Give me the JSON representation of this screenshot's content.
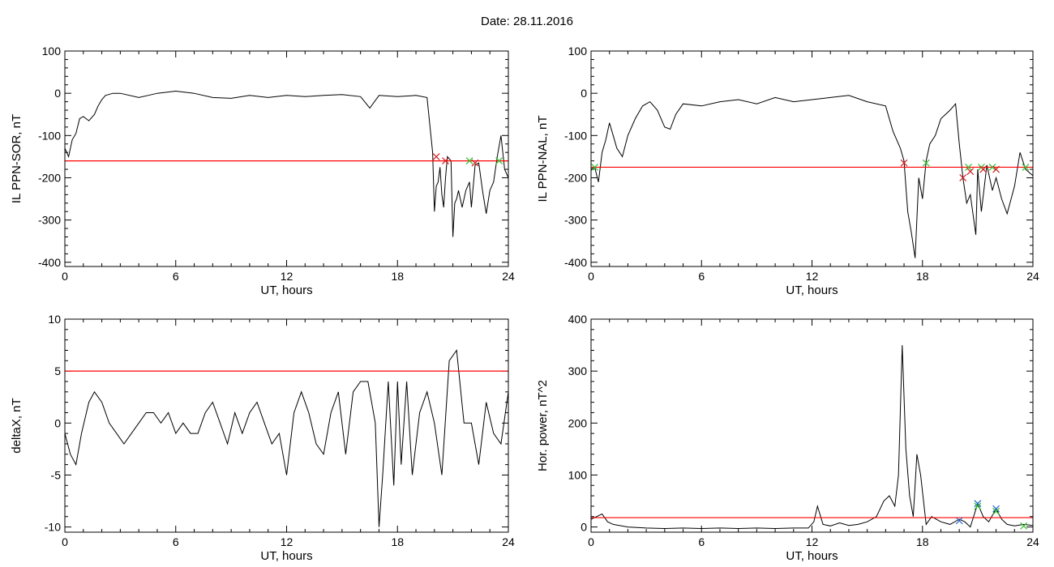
{
  "page": {
    "title": "Date:  28.11.2016"
  },
  "colors": {
    "signal": "#000000",
    "threshold": "#ff0000",
    "substorm": "#1f5fd0",
    "marker_red": "#d02020",
    "marker_green": "#30c030",
    "marker_blue": "#2060d0"
  },
  "chart_data": [
    {
      "type": "line",
      "xlabel": "UT, hours",
      "ylabel": "IL PPN-SOR, nT",
      "xlim": [
        0,
        24
      ],
      "ylim": [
        -410,
        100
      ],
      "xticks": [
        0,
        6,
        12,
        18,
        24
      ],
      "yticks": [
        100,
        0,
        -100,
        -200,
        -300,
        -400
      ],
      "threshold": -160,
      "series": [
        {
          "x": [
            0,
            0.2,
            0.4,
            0.6,
            0.8,
            1.0,
            1.3,
            1.6,
            1.8,
            2.0,
            2.2,
            2.6,
            3.0,
            4.0,
            4.5,
            5.0,
            6.0,
            7.0,
            8.0,
            9.0,
            10.0,
            11.0,
            12.0,
            13.0,
            14.0,
            15.0,
            16.0,
            16.5,
            17.0,
            18.0,
            19.0,
            19.6,
            19.9,
            20.0,
            20.1,
            20.2,
            20.3,
            20.4,
            20.5,
            20.6,
            20.7,
            20.9,
            21.0,
            21.1,
            21.2,
            21.3,
            21.5,
            21.7,
            21.9,
            22.0,
            22.2,
            22.4,
            22.6,
            22.8,
            23.0,
            23.2,
            23.4,
            23.6,
            23.8,
            24.0
          ],
          "y": [
            -130,
            -150,
            -110,
            -95,
            -60,
            -55,
            -65,
            -50,
            -30,
            -15,
            -5,
            0,
            0,
            -10,
            -5,
            0,
            5,
            0,
            -10,
            -12,
            -5,
            -10,
            -5,
            -8,
            -5,
            -3,
            -8,
            -35,
            -5,
            -8,
            -5,
            -10,
            -140,
            -280,
            -220,
            -210,
            -175,
            -240,
            -270,
            -200,
            -150,
            -160,
            -340,
            -260,
            -250,
            -230,
            -270,
            -230,
            -210,
            -270,
            -170,
            -165,
            -230,
            -285,
            -230,
            -210,
            -150,
            -100,
            -180,
            -200
          ]
        }
      ],
      "markers": [
        {
          "x": 20.1,
          "y": -150,
          "color": "red"
        },
        {
          "x": 20.6,
          "y": -160,
          "color": "red"
        },
        {
          "x": 21.9,
          "y": -160,
          "color": "green"
        },
        {
          "x": 22.2,
          "y": -165,
          "color": "red"
        },
        {
          "x": 23.5,
          "y": -160,
          "color": "green"
        }
      ]
    },
    {
      "type": "line",
      "xlabel": "UT, hours",
      "ylabel": "IL PPN-NAL, nT",
      "xlim": [
        0,
        24
      ],
      "ylim": [
        -410,
        100
      ],
      "xticks": [
        0,
        6,
        12,
        18,
        24
      ],
      "yticks": [
        100,
        0,
        -100,
        -200,
        -300,
        -400
      ],
      "threshold": -175,
      "series": [
        {
          "x": [
            0,
            0.2,
            0.4,
            0.6,
            0.8,
            1.0,
            1.2,
            1.4,
            1.7,
            2.0,
            2.4,
            2.8,
            3.2,
            3.6,
            4.0,
            4.3,
            4.6,
            5.0,
            6.0,
            7.0,
            8.0,
            9.0,
            10.0,
            11.0,
            12.0,
            13.0,
            14.0,
            15.0,
            16.0,
            16.4,
            16.8,
            17.0,
            17.2,
            17.4,
            17.6,
            17.8,
            18.0,
            18.2,
            18.4,
            18.7,
            19.0,
            19.5,
            19.8,
            20.0,
            20.2,
            20.4,
            20.6,
            20.9,
            21.0,
            21.2,
            21.5,
            21.8,
            22.0,
            22.3,
            22.6,
            23.0,
            23.3,
            23.6,
            24.0
          ],
          "y": [
            -180,
            -175,
            -210,
            -140,
            -110,
            -70,
            -100,
            -130,
            -150,
            -100,
            -60,
            -30,
            -20,
            -40,
            -80,
            -85,
            -50,
            -25,
            -30,
            -20,
            -15,
            -25,
            -10,
            -20,
            -15,
            -10,
            -5,
            -20,
            -30,
            -90,
            -130,
            -160,
            -280,
            -330,
            -390,
            -200,
            -250,
            -160,
            -120,
            -100,
            -60,
            -40,
            -25,
            -120,
            -200,
            -260,
            -240,
            -335,
            -180,
            -280,
            -170,
            -230,
            -200,
            -250,
            -285,
            -220,
            -140,
            -180,
            -195
          ]
        }
      ],
      "markers": [
        {
          "x": 0.2,
          "y": -175,
          "color": "green"
        },
        {
          "x": 17.0,
          "y": -165,
          "color": "red"
        },
        {
          "x": 18.2,
          "y": -165,
          "color": "green"
        },
        {
          "x": 20.2,
          "y": -200,
          "color": "red"
        },
        {
          "x": 20.5,
          "y": -175,
          "color": "green"
        },
        {
          "x": 20.6,
          "y": -185,
          "color": "red"
        },
        {
          "x": 21.2,
          "y": -175,
          "color": "green"
        },
        {
          "x": 21.3,
          "y": -180,
          "color": "red"
        },
        {
          "x": 21.8,
          "y": -175,
          "color": "green"
        },
        {
          "x": 22.0,
          "y": -180,
          "color": "red"
        },
        {
          "x": 23.6,
          "y": -175,
          "color": "green"
        }
      ]
    },
    {
      "type": "line",
      "xlabel": "UT, hours",
      "ylabel": "deltaX, nT",
      "xlim": [
        0,
        24
      ],
      "ylim": [
        -10.5,
        10
      ],
      "xticks": [
        0,
        6,
        12,
        18,
        24
      ],
      "yticks": [
        10,
        5,
        0,
        -5,
        -10
      ],
      "threshold": 5,
      "series": [
        {
          "x": [
            0,
            0.3,
            0.6,
            0.9,
            1.3,
            1.6,
            2.0,
            2.4,
            2.8,
            3.2,
            3.6,
            4.0,
            4.4,
            4.8,
            5.2,
            5.6,
            6.0,
            6.4,
            6.8,
            7.2,
            7.6,
            8.0,
            8.4,
            8.8,
            9.2,
            9.6,
            10.0,
            10.4,
            10.8,
            11.2,
            11.6,
            12.0,
            12.4,
            12.8,
            13.2,
            13.6,
            14.0,
            14.4,
            14.8,
            15.2,
            15.6,
            16.0,
            16.4,
            16.8,
            17.0,
            17.2,
            17.5,
            17.8,
            18.0,
            18.2,
            18.5,
            18.8,
            19.2,
            19.6,
            20.0,
            20.4,
            20.8,
            21.2,
            21.6,
            22.0,
            22.4,
            22.8,
            23.2,
            23.6,
            24.0
          ],
          "y": [
            -1,
            -3,
            -4,
            -1,
            2,
            3,
            2,
            0,
            -1,
            -2,
            -1,
            0,
            1,
            1,
            0,
            1,
            -1,
            0,
            -1,
            -1,
            1,
            2,
            0,
            -2,
            1,
            -1,
            1,
            2,
            0,
            -2,
            -1,
            -5,
            1,
            3,
            1,
            -2,
            -3,
            1,
            3,
            -3,
            3,
            4,
            4,
            0,
            -10,
            -5,
            4,
            -6,
            4,
            -4,
            4,
            -5,
            1,
            3,
            0,
            -5,
            6,
            7,
            0,
            0,
            -4,
            2,
            -1,
            -2,
            3
          ]
        }
      ]
    },
    {
      "type": "line",
      "xlabel": "UT, hours",
      "ylabel": "Hor. power, nT^2",
      "xlim": [
        0,
        24
      ],
      "ylim": [
        -10,
        400
      ],
      "xticks": [
        0,
        6,
        12,
        18,
        24
      ],
      "yticks": [
        400,
        300,
        200,
        100,
        0
      ],
      "threshold": 18,
      "series": [
        {
          "x": [
            0,
            0.3,
            0.6,
            0.9,
            1.2,
            2.0,
            3.0,
            4.0,
            5.0,
            6.0,
            7.0,
            8.0,
            9.0,
            10.0,
            11.0,
            11.8,
            12.1,
            12.3,
            12.6,
            13.0,
            13.5,
            14.0,
            14.5,
            15.0,
            15.5,
            15.9,
            16.2,
            16.5,
            16.7,
            16.9,
            17.1,
            17.3,
            17.5,
            17.7,
            17.9,
            18.2,
            18.5,
            19.0,
            19.5,
            20.0,
            20.3,
            20.6,
            21.0,
            21.3,
            21.6,
            22.0,
            22.3,
            22.6,
            23.0,
            23.5,
            24.0
          ],
          "y": [
            15,
            20,
            25,
            10,
            5,
            0,
            -2,
            -3,
            -2,
            -3,
            -2,
            -3,
            -2,
            -3,
            -2,
            -2,
            10,
            40,
            5,
            2,
            8,
            3,
            5,
            10,
            20,
            50,
            60,
            40,
            100,
            350,
            150,
            60,
            20,
            140,
            100,
            5,
            20,
            10,
            5,
            15,
            10,
            0,
            45,
            20,
            10,
            35,
            15,
            5,
            2,
            5,
            3
          ]
        }
      ],
      "markers": [
        {
          "x": 20.0,
          "y": 12,
          "color": "blue"
        },
        {
          "x": 21.0,
          "y": 45,
          "color": "blue"
        },
        {
          "x": 21.0,
          "y": 40,
          "color": "green"
        },
        {
          "x": 22.0,
          "y": 35,
          "color": "blue"
        },
        {
          "x": 22.0,
          "y": 30,
          "color": "green"
        },
        {
          "x": 23.5,
          "y": 2,
          "color": "green"
        }
      ]
    }
  ]
}
